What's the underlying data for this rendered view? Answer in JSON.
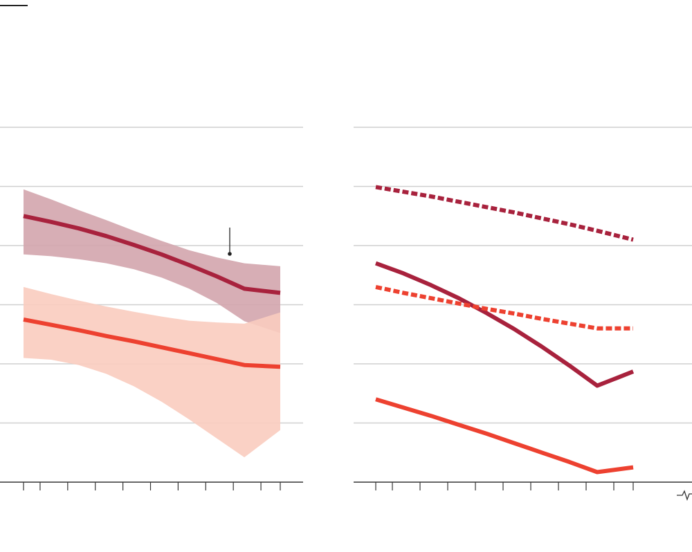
{
  "chart_data": [
    {
      "type": "line",
      "title": "",
      "xlabel": "",
      "ylabel": "",
      "grid": true,
      "xlim": [
        0,
        9.3
      ],
      "ylim": [
        0,
        6
      ],
      "x_ticks": [
        0,
        0.6,
        1.6,
        2.6,
        3.6,
        4.6,
        5.6,
        6.6,
        7.6,
        8.6,
        9.3
      ],
      "y_gridlines": [
        1,
        2,
        3,
        4,
        5,
        6
      ],
      "series": [
        {
          "color": "#a8223d",
          "band_color": "#d3a5ad",
          "style": "solid",
          "x": [
            0,
            1,
            2,
            3,
            4,
            5,
            6,
            7,
            8,
            9.3
          ],
          "values": [
            4.5,
            4.4,
            4.29,
            4.16,
            4.01,
            3.85,
            3.67,
            3.48,
            3.27,
            3.2
          ],
          "band_lower": [
            3.85,
            3.82,
            3.77,
            3.7,
            3.6,
            3.46,
            3.27,
            3.03,
            2.72,
            2.52
          ],
          "band_upper": [
            4.95,
            4.78,
            4.6,
            4.43,
            4.25,
            4.08,
            3.92,
            3.8,
            3.7,
            3.65
          ]
        },
        {
          "color": "#ed4130",
          "band_color": "#f9ccbf",
          "style": "solid",
          "x": [
            0,
            1,
            2,
            3,
            4,
            5,
            6,
            7,
            8,
            9.3
          ],
          "values": [
            2.75,
            2.66,
            2.57,
            2.47,
            2.38,
            2.28,
            2.18,
            2.08,
            1.98,
            1.95
          ],
          "band_lower": [
            2.1,
            2.07,
            1.98,
            1.83,
            1.62,
            1.36,
            1.06,
            0.74,
            0.42,
            0.88
          ],
          "band_upper": [
            3.3,
            3.18,
            3.07,
            2.97,
            2.88,
            2.8,
            2.73,
            2.7,
            2.68,
            2.87
          ]
        }
      ]
    },
    {
      "type": "line",
      "title": "",
      "xlabel": "",
      "ylabel": "",
      "grid": true,
      "xlim": [
        0,
        9.3
      ],
      "ylim": [
        0,
        6
      ],
      "x_ticks": [
        0,
        0.6,
        1.6,
        2.6,
        3.6,
        4.6,
        5.6,
        6.6,
        7.6,
        8.6,
        9.3
      ],
      "y_gridlines": [
        1,
        2,
        3,
        4,
        5,
        6
      ],
      "axis_break": true,
      "series": [
        {
          "color": "#a8223d",
          "style": "dashed",
          "x": [
            0,
            1,
            2,
            3,
            4,
            5,
            6,
            7,
            8,
            9.3
          ],
          "values": [
            4.99,
            4.91,
            4.83,
            4.74,
            4.65,
            4.56,
            4.46,
            4.36,
            4.25,
            4.1
          ]
        },
        {
          "color": "#a8223d",
          "style": "solid",
          "x": [
            0,
            1,
            2,
            3,
            4,
            5,
            6,
            7,
            8,
            9.3
          ],
          "values": [
            3.7,
            3.53,
            3.33,
            3.11,
            2.86,
            2.59,
            2.29,
            1.97,
            1.63,
            1.87
          ]
        },
        {
          "color": "#ed4130",
          "style": "dashed",
          "x": [
            0,
            1,
            2,
            3,
            4,
            5,
            6,
            7,
            8,
            9.3
          ],
          "values": [
            3.3,
            3.2,
            3.11,
            3.02,
            2.93,
            2.85,
            2.76,
            2.68,
            2.6,
            2.6
          ]
        },
        {
          "color": "#ed4130",
          "style": "solid",
          "x": [
            0,
            1,
            2,
            3,
            4,
            5,
            6,
            7,
            8,
            9.3
          ],
          "values": [
            1.4,
            1.26,
            1.12,
            0.97,
            0.82,
            0.66,
            0.5,
            0.34,
            0.17,
            0.25
          ]
        }
      ]
    }
  ]
}
